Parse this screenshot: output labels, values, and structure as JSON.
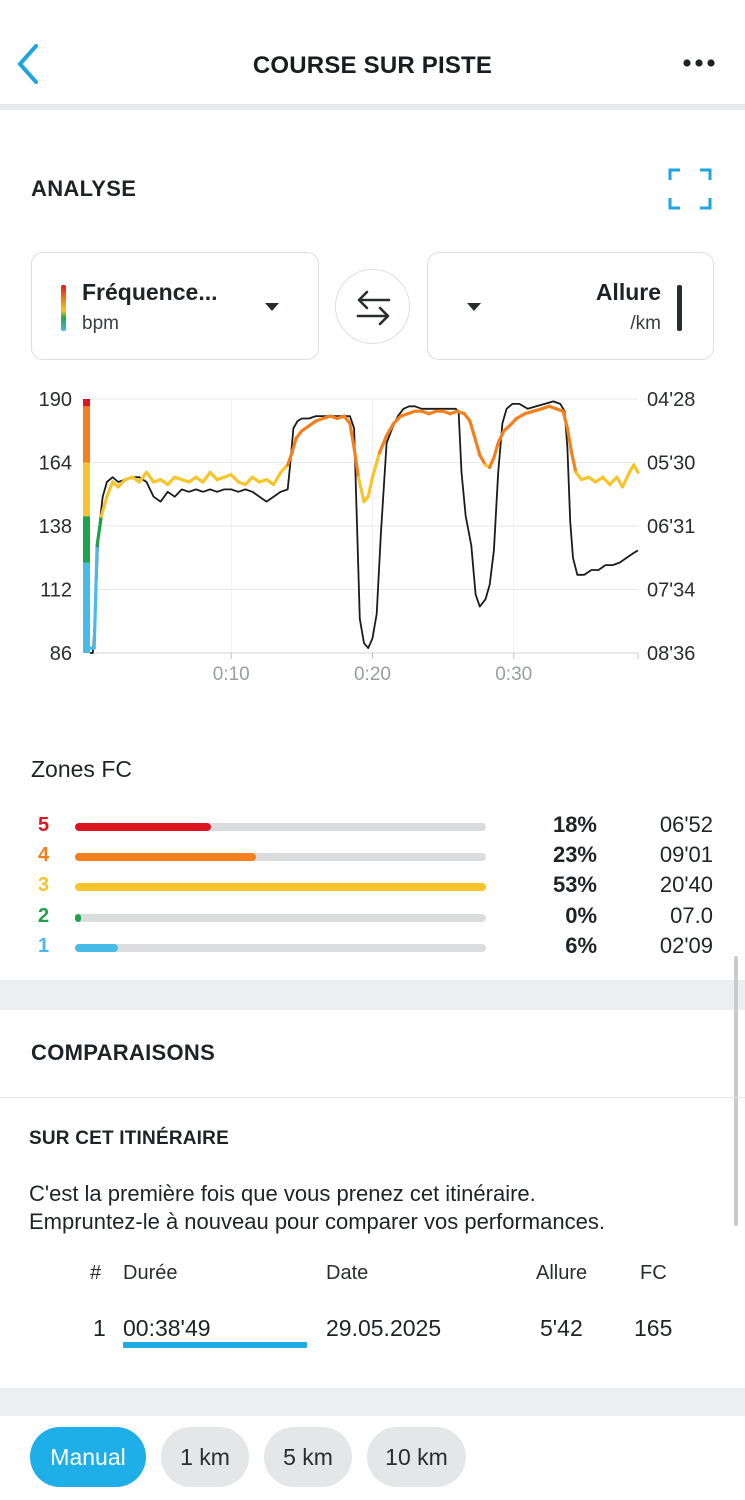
{
  "header": {
    "title": "COURSE SUR PISTE"
  },
  "analyse": {
    "title": "ANALYSE",
    "left_selector": {
      "label": "Fréquence...",
      "unit": "bpm"
    },
    "right_selector": {
      "label": "Allure",
      "unit": "/km"
    }
  },
  "chart_data": {
    "type": "line",
    "x_ticks": [
      "0:10",
      "0:20",
      "0:30"
    ],
    "x_tick_minutes": [
      10,
      20,
      30
    ],
    "x_range_minutes": [
      0,
      38.8
    ],
    "y_left": {
      "unit": "bpm",
      "ticks": [
        "190",
        "164",
        "138",
        "112",
        "86"
      ],
      "range": [
        86,
        190
      ]
    },
    "y_right": {
      "unit": "/km",
      "ticks": [
        "04'28",
        "05'30",
        "06'31",
        "07'34",
        "08'36"
      ]
    },
    "grid": true,
    "series": [
      {
        "name": "Fréquence...",
        "color_by_zone": true,
        "points": [
          [
            0.0,
            88
          ],
          [
            0.3,
            88
          ],
          [
            0.5,
            130
          ],
          [
            0.8,
            142
          ],
          [
            1.2,
            150
          ],
          [
            1.6,
            156
          ],
          [
            2.0,
            154
          ],
          [
            2.5,
            157
          ],
          [
            3.0,
            158
          ],
          [
            3.5,
            156
          ],
          [
            4.0,
            160
          ],
          [
            4.5,
            156
          ],
          [
            5.0,
            157
          ],
          [
            5.5,
            155
          ],
          [
            6.0,
            158
          ],
          [
            6.5,
            157
          ],
          [
            7.0,
            156
          ],
          [
            7.5,
            158
          ],
          [
            8.0,
            156
          ],
          [
            8.5,
            160
          ],
          [
            9.0,
            157
          ],
          [
            9.5,
            158
          ],
          [
            10.0,
            159
          ],
          [
            10.5,
            156
          ],
          [
            11.0,
            155
          ],
          [
            11.5,
            158
          ],
          [
            12.0,
            156
          ],
          [
            12.5,
            157
          ],
          [
            13.0,
            155
          ],
          [
            13.5,
            160
          ],
          [
            14.0,
            163
          ],
          [
            14.3,
            168
          ],
          [
            14.6,
            174
          ],
          [
            15.0,
            177
          ],
          [
            15.5,
            179
          ],
          [
            16.0,
            181
          ],
          [
            16.5,
            182
          ],
          [
            17.0,
            183
          ],
          [
            17.5,
            182
          ],
          [
            18.0,
            183
          ],
          [
            18.4,
            180
          ],
          [
            18.7,
            170
          ],
          [
            19.0,
            158
          ],
          [
            19.4,
            148
          ],
          [
            19.7,
            150
          ],
          [
            20.0,
            158
          ],
          [
            20.5,
            168
          ],
          [
            21.0,
            175
          ],
          [
            21.5,
            180
          ],
          [
            22.0,
            183
          ],
          [
            22.5,
            184
          ],
          [
            23.0,
            185
          ],
          [
            23.5,
            185
          ],
          [
            24.0,
            184
          ],
          [
            24.5,
            185
          ],
          [
            25.0,
            185
          ],
          [
            25.5,
            184
          ],
          [
            26.0,
            185
          ],
          [
            26.5,
            184
          ],
          [
            26.9,
            181
          ],
          [
            27.2,
            175
          ],
          [
            27.6,
            167
          ],
          [
            28.0,
            163
          ],
          [
            28.3,
            162
          ],
          [
            28.6,
            166
          ],
          [
            28.9,
            172
          ],
          [
            29.3,
            177
          ],
          [
            29.7,
            179
          ],
          [
            30.2,
            182
          ],
          [
            30.8,
            184
          ],
          [
            31.4,
            185
          ],
          [
            32.0,
            186
          ],
          [
            32.5,
            187
          ],
          [
            33.0,
            186
          ],
          [
            33.5,
            185
          ],
          [
            33.8,
            178
          ],
          [
            34.1,
            168
          ],
          [
            34.4,
            160
          ],
          [
            34.8,
            157
          ],
          [
            35.3,
            158
          ],
          [
            35.8,
            156
          ],
          [
            36.3,
            158
          ],
          [
            36.8,
            155
          ],
          [
            37.3,
            158
          ],
          [
            37.7,
            154
          ],
          [
            38.2,
            160
          ],
          [
            38.5,
            163
          ],
          [
            38.8,
            160
          ]
        ]
      },
      {
        "name": "Allure",
        "color": "#1b1b1b",
        "points": [
          [
            0.0,
            86
          ],
          [
            0.2,
            86
          ],
          [
            0.4,
            105
          ],
          [
            0.6,
            135
          ],
          [
            0.9,
            150
          ],
          [
            1.2,
            156
          ],
          [
            1.6,
            158
          ],
          [
            2.0,
            156
          ],
          [
            2.5,
            157
          ],
          [
            3.0,
            158
          ],
          [
            3.5,
            158
          ],
          [
            4.0,
            156
          ],
          [
            4.5,
            150
          ],
          [
            5.0,
            148
          ],
          [
            5.5,
            152
          ],
          [
            6.0,
            150
          ],
          [
            6.5,
            153
          ],
          [
            7.0,
            152
          ],
          [
            7.5,
            153
          ],
          [
            8.0,
            152
          ],
          [
            8.5,
            153
          ],
          [
            9.0,
            152
          ],
          [
            9.5,
            153
          ],
          [
            10.0,
            153
          ],
          [
            10.5,
            152
          ],
          [
            11.0,
            153
          ],
          [
            11.5,
            152
          ],
          [
            12.0,
            150
          ],
          [
            12.5,
            148
          ],
          [
            13.0,
            150
          ],
          [
            13.5,
            152
          ],
          [
            14.0,
            153
          ],
          [
            14.2,
            165
          ],
          [
            14.4,
            178
          ],
          [
            14.7,
            181
          ],
          [
            15.0,
            182
          ],
          [
            15.5,
            182
          ],
          [
            16.0,
            183
          ],
          [
            16.5,
            183
          ],
          [
            17.0,
            183
          ],
          [
            17.5,
            183
          ],
          [
            18.0,
            183
          ],
          [
            18.4,
            183
          ],
          [
            18.7,
            178
          ],
          [
            18.9,
            140
          ],
          [
            19.1,
            100
          ],
          [
            19.4,
            90
          ],
          [
            19.7,
            88
          ],
          [
            20.0,
            92
          ],
          [
            20.3,
            102
          ],
          [
            20.6,
            135
          ],
          [
            21.0,
            172
          ],
          [
            21.4,
            178
          ],
          [
            21.8,
            183
          ],
          [
            22.2,
            186
          ],
          [
            22.6,
            187
          ],
          [
            23.0,
            187
          ],
          [
            23.5,
            186
          ],
          [
            24.0,
            186
          ],
          [
            24.5,
            186
          ],
          [
            25.0,
            186
          ],
          [
            25.5,
            186
          ],
          [
            25.9,
            186
          ],
          [
            26.1,
            185
          ],
          [
            26.3,
            160
          ],
          [
            26.6,
            142
          ],
          [
            27.0,
            130
          ],
          [
            27.3,
            110
          ],
          [
            27.6,
            105
          ],
          [
            28.0,
            108
          ],
          [
            28.3,
            114
          ],
          [
            28.6,
            128
          ],
          [
            28.9,
            160
          ],
          [
            29.2,
            180
          ],
          [
            29.5,
            186
          ],
          [
            29.9,
            188
          ],
          [
            30.4,
            188
          ],
          [
            31.0,
            186
          ],
          [
            31.6,
            187
          ],
          [
            32.2,
            188
          ],
          [
            32.8,
            189
          ],
          [
            33.3,
            188
          ],
          [
            33.6,
            185
          ],
          [
            33.8,
            170
          ],
          [
            34.0,
            140
          ],
          [
            34.2,
            125
          ],
          [
            34.5,
            118
          ],
          [
            35.0,
            118
          ],
          [
            35.5,
            120
          ],
          [
            36.0,
            120
          ],
          [
            36.5,
            122
          ],
          [
            37.0,
            122
          ],
          [
            37.5,
            123
          ],
          [
            38.0,
            125
          ],
          [
            38.5,
            127
          ],
          [
            38.8,
            128
          ]
        ]
      }
    ],
    "zone_colors": [
      "#49bbe8",
      "#1fa24b",
      "#f7c42b",
      "#f3801d",
      "#dc1520"
    ],
    "zone_thresholds_bpm": [
      123,
      142,
      164,
      187
    ]
  },
  "zones": {
    "title": "Zones FC",
    "rows": [
      {
        "num": "5",
        "color": "#dc1520",
        "fraction": 0.33,
        "pct": "18%",
        "time": "06'52"
      },
      {
        "num": "4",
        "color": "#f3801d",
        "fraction": 0.44,
        "pct": "23%",
        "time": "09'01"
      },
      {
        "num": "3",
        "color": "#f7c42b",
        "fraction": 1.0,
        "pct": "53%",
        "time": "20'40"
      },
      {
        "num": "2",
        "color": "#1fa24b",
        "fraction": 0.015,
        "pct": "0%",
        "time": "07.0"
      },
      {
        "num": "1",
        "color": "#49bbe8",
        "fraction": 0.105,
        "pct": "6%",
        "time": "02'09"
      }
    ]
  },
  "comparaisons": {
    "title": "COMPARAISONS",
    "subtitle": "SUR CET ITINÉRAIRE",
    "paragraph_line1": "C'est la première fois que vous prenez cet itinéraire.",
    "paragraph_line2": "Empruntez-le à nouveau pour comparer vos performances.",
    "table": {
      "headers": {
        "num": "#",
        "duration": "Durée",
        "date": "Date",
        "pace": "Allure",
        "hr": "FC"
      },
      "rows": [
        {
          "num": "1",
          "duration": "00:38'49",
          "date": "29.05.2025",
          "pace": "5'42",
          "hr": "165"
        }
      ]
    }
  },
  "segments": {
    "chips": [
      "Manual",
      "1 km",
      "5 km",
      "10 km"
    ],
    "active": "Manual"
  },
  "colors": {
    "accent": "#1eaee8",
    "text": "#1f2326"
  }
}
